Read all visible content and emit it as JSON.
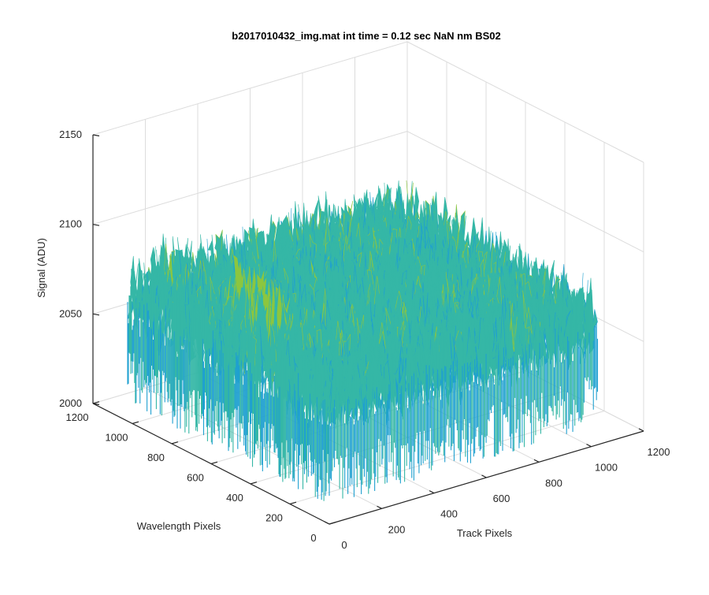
{
  "chart_data": {
    "type": "surface",
    "title": "b2017010432_img.mat int time = 0.12 sec  NaN nm BS02",
    "xlabel": "Track Pixels",
    "ylabel": "Wavelength Pixels",
    "zlabel": "Signal (ADU)",
    "xlim": [
      0,
      1200
    ],
    "ylim": [
      0,
      1200
    ],
    "zlim": [
      2000,
      2150
    ],
    "x_ticks": [
      0,
      200,
      400,
      600,
      800,
      1000,
      1200
    ],
    "y_ticks": [
      0,
      200,
      400,
      600,
      800,
      1000,
      1200
    ],
    "z_ticks": [
      2000,
      2050,
      2100,
      2150
    ],
    "x_tick_labels": [
      "0",
      "200",
      "400",
      "600",
      "800",
      "1000",
      "1200"
    ],
    "y_tick_labels": [
      "0",
      "200",
      "400",
      "600",
      "800",
      "1000",
      "1200"
    ],
    "z_tick_labels": [
      "2000",
      "2050",
      "2100",
      "2150"
    ],
    "data_extent": {
      "x": [
        0,
        1024
      ],
      "y": [
        0,
        1024
      ]
    },
    "signal_mean": 2070,
    "signal_noise_range": [
      2010,
      2140
    ],
    "colormap": [
      "#0072BD",
      "#1FA0D0",
      "#35B7A6",
      "#8CC63F",
      "#F2C93B"
    ],
    "grid": true
  }
}
